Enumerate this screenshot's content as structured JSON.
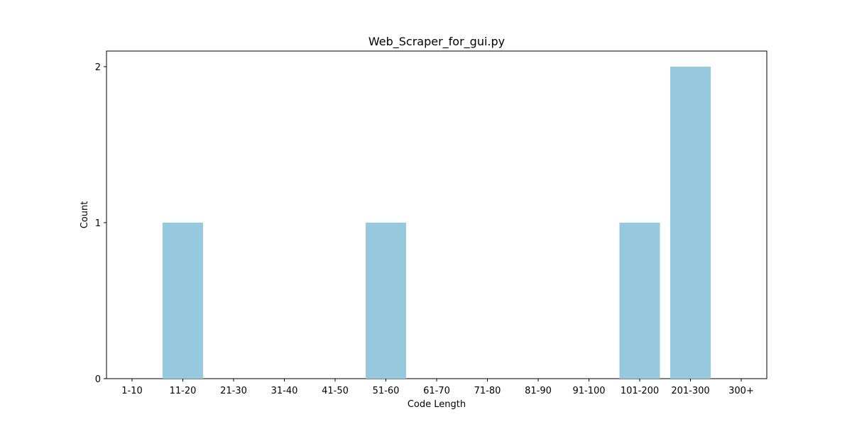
{
  "chart_data": {
    "type": "bar",
    "title": "Web_Scraper_for_gui.py",
    "xlabel": "Code Length",
    "ylabel": "Count",
    "categories": [
      "1-10",
      "11-20",
      "21-30",
      "31-40",
      "41-50",
      "51-60",
      "61-70",
      "71-80",
      "81-90",
      "91-100",
      "101-200",
      "201-300",
      "300+"
    ],
    "values": [
      0,
      1,
      0,
      0,
      0,
      1,
      0,
      0,
      0,
      0,
      1,
      2,
      0
    ],
    "yticks": [
      "0",
      "1",
      "2"
    ],
    "ylim": [
      0,
      2.1
    ],
    "grid": false,
    "bar_color": "#96c9dd"
  }
}
